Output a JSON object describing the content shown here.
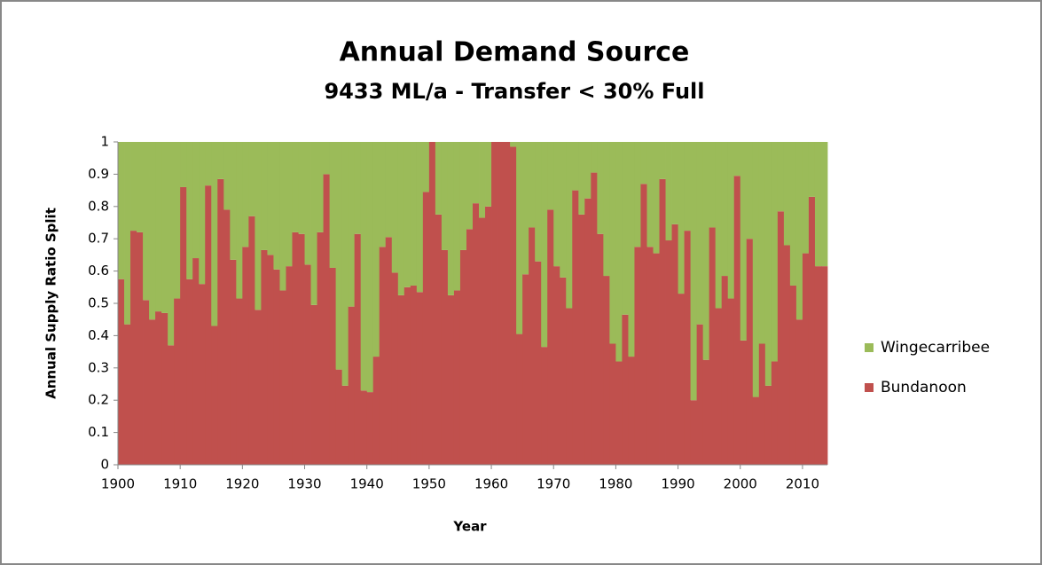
{
  "chart_data": {
    "type": "stacked-bar",
    "title": "Annual Demand Source",
    "subtitle": "9433 ML/a  - Transfer  < 30% Full",
    "x_label": "Year",
    "y_label": "Annual Supply Ratio Split",
    "x": [
      1900,
      1901,
      1902,
      1903,
      1904,
      1905,
      1906,
      1907,
      1908,
      1909,
      1910,
      1911,
      1912,
      1913,
      1914,
      1915,
      1916,
      1917,
      1918,
      1919,
      1920,
      1921,
      1922,
      1923,
      1924,
      1925,
      1926,
      1927,
      1928,
      1929,
      1930,
      1931,
      1932,
      1933,
      1934,
      1935,
      1936,
      1937,
      1938,
      1939,
      1940,
      1941,
      1942,
      1943,
      1944,
      1945,
      1946,
      1947,
      1948,
      1949,
      1950,
      1951,
      1952,
      1953,
      1954,
      1955,
      1956,
      1957,
      1958,
      1959,
      1960,
      1961,
      1962,
      1963,
      1964,
      1965,
      1966,
      1967,
      1968,
      1969,
      1970,
      1971,
      1972,
      1973,
      1974,
      1975,
      1976,
      1977,
      1978,
      1979,
      1980,
      1981,
      1982,
      1983,
      1984,
      1985,
      1986,
      1987,
      1988,
      1989,
      1990,
      1991,
      1992,
      1993,
      1994,
      1995,
      1996,
      1997,
      1998,
      1999,
      2000,
      2001,
      2002,
      2003,
      2004,
      2005,
      2006,
      2007,
      2008,
      2009,
      2010,
      2011,
      2012,
      2013
    ],
    "series": [
      {
        "name": "Bundanoon",
        "color": "#c0504d",
        "values": [
          0.575,
          0.435,
          0.725,
          0.72,
          0.51,
          0.45,
          0.475,
          0.47,
          0.37,
          0.515,
          0.86,
          0.575,
          0.64,
          0.56,
          0.865,
          0.43,
          0.885,
          0.79,
          0.635,
          0.515,
          0.675,
          0.77,
          0.48,
          0.665,
          0.65,
          0.605,
          0.54,
          0.615,
          0.72,
          0.715,
          0.62,
          0.495,
          0.72,
          0.9,
          0.61,
          0.295,
          0.245,
          0.49,
          0.715,
          0.23,
          0.225,
          0.335,
          0.675,
          0.705,
          0.595,
          0.525,
          0.55,
          0.555,
          0.535,
          0.845,
          1,
          0.775,
          0.665,
          0.525,
          0.54,
          0.665,
          0.73,
          0.81,
          0.765,
          0.8,
          1,
          1,
          1,
          0.985,
          0.405,
          0.59,
          0.735,
          0.63,
          0.365,
          0.79,
          0.615,
          0.58,
          0.485,
          0.85,
          0.775,
          0.825,
          0.905,
          0.715,
          0.585,
          0.375,
          0.32,
          0.465,
          0.335,
          0.675,
          0.87,
          0.675,
          0.655,
          0.885,
          0.695,
          0.745,
          0.53,
          0.725,
          0.2,
          0.435,
          0.325,
          0.735,
          0.485,
          0.585,
          0.515,
          0.895,
          0.385,
          0.7,
          0.21,
          0.375,
          0.245,
          0.32,
          0.785,
          0.68,
          0.555,
          0.45,
          0.655,
          0.83,
          0.615,
          0.615
        ]
      },
      {
        "name": "Wingecarribee",
        "color": "#9bbb59",
        "values": [
          0.425,
          0.565,
          0.275,
          0.28,
          0.49,
          0.55,
          0.525,
          0.53,
          0.63,
          0.485,
          0.14,
          0.425,
          0.36,
          0.44,
          0.135,
          0.57,
          0.115,
          0.21,
          0.365,
          0.485,
          0.325,
          0.23,
          0.52,
          0.335,
          0.35,
          0.395,
          0.46,
          0.385,
          0.28,
          0.285,
          0.38,
          0.505,
          0.28,
          0.1,
          0.39,
          0.705,
          0.755,
          0.51,
          0.285,
          0.77,
          0.775,
          0.665,
          0.325,
          0.295,
          0.405,
          0.475,
          0.45,
          0.445,
          0.465,
          0.155,
          0,
          0.225,
          0.335,
          0.475,
          0.46,
          0.335,
          0.27,
          0.19,
          0.235,
          0.2,
          0,
          0,
          0,
          0.015,
          0.595,
          0.41,
          0.265,
          0.37,
          0.635,
          0.21,
          0.385,
          0.42,
          0.515,
          0.15,
          0.225,
          0.175,
          0.095,
          0.285,
          0.415,
          0.625,
          0.68,
          0.535,
          0.665,
          0.325,
          0.13,
          0.325,
          0.345,
          0.115,
          0.305,
          0.255,
          0.47,
          0.275,
          0.8,
          0.565,
          0.675,
          0.265,
          0.515,
          0.415,
          0.485,
          0.105,
          0.615,
          0.3,
          0.79,
          0.625,
          0.755,
          0.68,
          0.215,
          0.32,
          0.445,
          0.55,
          0.345,
          0.17,
          0.385,
          0.385
        ]
      }
    ],
    "xlim": [
      1900,
      2014
    ],
    "xticks": [
      1900,
      1910,
      1920,
      1930,
      1940,
      1950,
      1960,
      1970,
      1980,
      1990,
      2000,
      2010
    ],
    "ylim": [
      0,
      1
    ],
    "yticks": [
      0,
      0.1,
      0.2,
      0.3,
      0.4,
      0.5,
      0.6,
      0.7,
      0.8,
      0.9,
      1
    ],
    "grid": false,
    "legend": "right"
  }
}
